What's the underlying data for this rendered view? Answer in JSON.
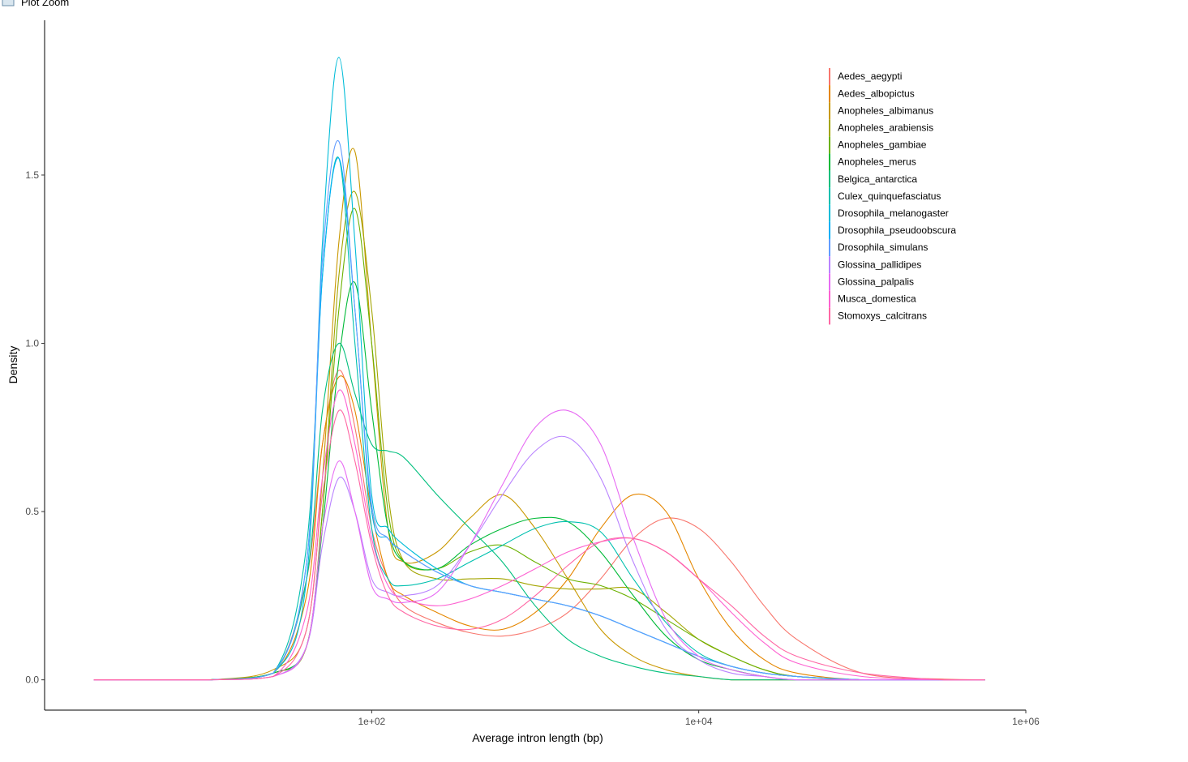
{
  "window_title": "Plot Zoom",
  "chart_data": {
    "type": "density",
    "x_label": "Average intron length (bp)",
    "y_label": "Density",
    "log_x": true,
    "grid": false,
    "legend": "top-right",
    "xlim": [
      1,
      1000000
    ],
    "ylim": [
      -0.09,
      1.96
    ],
    "xticks": [
      {
        "value": 100,
        "label": "1e+02"
      },
      {
        "value": 10000,
        "label": "1e+04"
      },
      {
        "value": 1000000,
        "label": "1e+06"
      }
    ],
    "yticks": [
      {
        "value": 0,
        "label": "0.0"
      },
      0.5,
      {
        "value": 1,
        "label": "1.0"
      },
      1.5
    ],
    "x": [
      2,
      10,
      25,
      40,
      50,
      63,
      79,
      100,
      126,
      158,
      251,
      398,
      631,
      1000,
      1585,
      2512,
      3981,
      6310,
      10000,
      15849,
      25119,
      39811,
      100000,
      316228,
      562341
    ],
    "series": [
      {
        "name": "Aedes_aegypti",
        "color": "#F8766D",
        "values": [
          0,
          0,
          0.02,
          0.3,
          0.7,
          0.92,
          0.75,
          0.45,
          0.3,
          0.22,
          0.17,
          0.14,
          0.13,
          0.15,
          0.2,
          0.3,
          0.42,
          0.48,
          0.45,
          0.35,
          0.22,
          0.12,
          0.02,
          0.002,
          0
        ]
      },
      {
        "name": "Aedes_albopictus",
        "color": "#E58700",
        "values": [
          0,
          0,
          0.02,
          0.25,
          0.7,
          0.9,
          0.8,
          0.5,
          0.3,
          0.25,
          0.2,
          0.16,
          0.15,
          0.2,
          0.3,
          0.45,
          0.55,
          0.5,
          0.3,
          0.15,
          0.06,
          0.02,
          0,
          0,
          0
        ]
      },
      {
        "name": "Anopheles_albimanus",
        "color": "#C99800",
        "values": [
          0,
          0,
          0.03,
          0.15,
          0.6,
          1.3,
          1.57,
          1.0,
          0.45,
          0.35,
          0.38,
          0.48,
          0.55,
          0.45,
          0.3,
          0.15,
          0.07,
          0.03,
          0.01,
          0,
          0,
          0,
          0,
          0,
          0
        ]
      },
      {
        "name": "Anopheles_arabiensis",
        "color": "#A3A500",
        "values": [
          0,
          0,
          0.02,
          0.1,
          0.5,
          1.2,
          1.45,
          1.1,
          0.55,
          0.35,
          0.3,
          0.3,
          0.3,
          0.28,
          0.27,
          0.27,
          0.27,
          0.2,
          0.12,
          0.07,
          0.03,
          0.01,
          0,
          0,
          0
        ]
      },
      {
        "name": "Anopheles_gambiae",
        "color": "#6BB100",
        "values": [
          0,
          0,
          0.02,
          0.1,
          0.5,
          1.1,
          1.4,
          1.0,
          0.5,
          0.35,
          0.33,
          0.38,
          0.4,
          0.35,
          0.3,
          0.28,
          0.24,
          0.18,
          0.12,
          0.07,
          0.03,
          0.01,
          0,
          0,
          0
        ]
      },
      {
        "name": "Anopheles_merus",
        "color": "#00BA38",
        "values": [
          0,
          0,
          0.02,
          0.1,
          0.45,
          0.95,
          1.18,
          0.8,
          0.45,
          0.35,
          0.33,
          0.4,
          0.45,
          0.48,
          0.47,
          0.38,
          0.25,
          0.13,
          0.06,
          0.03,
          0.01,
          0,
          0,
          0,
          0
        ]
      },
      {
        "name": "Belgica_antarctica",
        "color": "#00BF7D",
        "values": [
          0,
          0,
          0.02,
          0.3,
          0.8,
          1.0,
          0.85,
          0.7,
          0.68,
          0.66,
          0.55,
          0.45,
          0.35,
          0.22,
          0.12,
          0.07,
          0.04,
          0.02,
          0.01,
          0,
          0,
          0,
          0,
          0,
          0
        ]
      },
      {
        "name": "Culex_quinquefasciatus",
        "color": "#00C0AF",
        "values": [
          0,
          0,
          0.02,
          0.4,
          1.2,
          1.55,
          1.0,
          0.45,
          0.3,
          0.28,
          0.3,
          0.35,
          0.4,
          0.45,
          0.47,
          0.44,
          0.3,
          0.17,
          0.08,
          0.04,
          0.02,
          0.01,
          0,
          0,
          0
        ]
      },
      {
        "name": "Drosophila_melanogaster",
        "color": "#00BCD8",
        "values": [
          0,
          0,
          0.02,
          0.3,
          1.3,
          1.85,
          1.3,
          0.55,
          0.45,
          0.4,
          0.33,
          0.28,
          0.26,
          0.24,
          0.22,
          0.19,
          0.15,
          0.11,
          0.07,
          0.04,
          0.02,
          0.01,
          0,
          0,
          0
        ]
      },
      {
        "name": "Drosophila_pseudoobscura",
        "color": "#00B0F6",
        "values": [
          0,
          0,
          0.02,
          0.35,
          1.2,
          1.55,
          1.1,
          0.5,
          0.42,
          0.38,
          0.32,
          0.28,
          0.26,
          0.24,
          0.22,
          0.19,
          0.15,
          0.11,
          0.07,
          0.04,
          0.02,
          0.01,
          0,
          0,
          0
        ]
      },
      {
        "name": "Drosophila_simulans",
        "color": "#619CFF",
        "values": [
          0,
          0,
          0.02,
          0.35,
          1.25,
          1.6,
          1.1,
          0.52,
          0.42,
          0.38,
          0.32,
          0.28,
          0.26,
          0.24,
          0.22,
          0.19,
          0.15,
          0.11,
          0.07,
          0.04,
          0.02,
          0.01,
          0,
          0,
          0
        ]
      },
      {
        "name": "Glossina_pallidipes",
        "color": "#B983FF",
        "values": [
          0,
          0,
          0.01,
          0.1,
          0.4,
          0.6,
          0.5,
          0.3,
          0.26,
          0.25,
          0.28,
          0.4,
          0.55,
          0.68,
          0.72,
          0.6,
          0.35,
          0.15,
          0.06,
          0.02,
          0.01,
          0,
          0,
          0,
          0
        ]
      },
      {
        "name": "Glossina_palpalis",
        "color": "#E76BF3",
        "values": [
          0,
          0,
          0.01,
          0.1,
          0.45,
          0.65,
          0.5,
          0.28,
          0.24,
          0.23,
          0.26,
          0.4,
          0.58,
          0.75,
          0.8,
          0.7,
          0.42,
          0.18,
          0.07,
          0.03,
          0.01,
          0,
          0,
          0,
          0
        ]
      },
      {
        "name": "Musca_domestica",
        "color": "#FD61D1",
        "values": [
          0,
          0,
          0.01,
          0.2,
          0.6,
          0.86,
          0.7,
          0.42,
          0.28,
          0.24,
          0.22,
          0.24,
          0.28,
          0.33,
          0.38,
          0.41,
          0.42,
          0.38,
          0.3,
          0.2,
          0.11,
          0.05,
          0.01,
          0,
          0
        ]
      },
      {
        "name": "Stomoxys_calcitrans",
        "color": "#FF67A4",
        "values": [
          0,
          0,
          0.01,
          0.15,
          0.55,
          0.8,
          0.65,
          0.4,
          0.25,
          0.2,
          0.16,
          0.15,
          0.18,
          0.25,
          0.34,
          0.41,
          0.42,
          0.38,
          0.3,
          0.22,
          0.13,
          0.07,
          0.02,
          0,
          0
        ]
      }
    ]
  }
}
